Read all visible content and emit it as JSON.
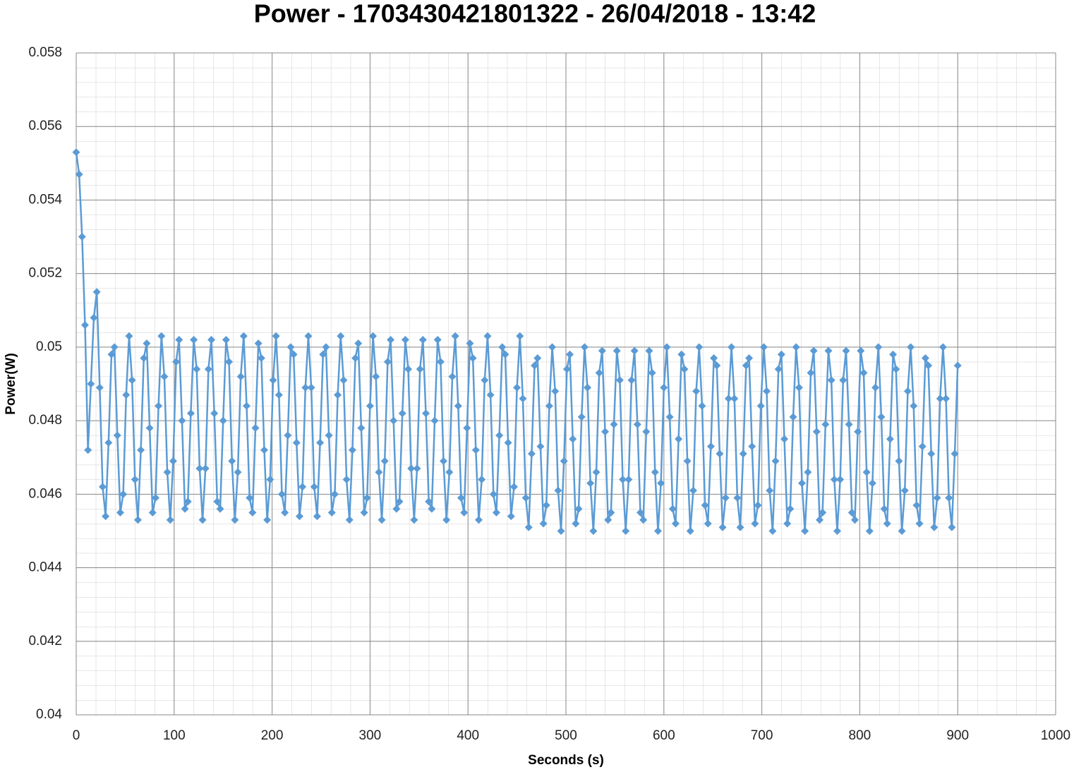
{
  "chart_data": {
    "type": "line",
    "title": "Power - 1703430421801322 - 26/04/2018 - 13:42",
    "x_label": "Seconds (s)",
    "y_label": "Power(W)",
    "color": "#5b9bd5",
    "marker": "diamond",
    "grid": true,
    "xlim": [
      0,
      1000
    ],
    "xticks": [
      0,
      100,
      200,
      300,
      400,
      500,
      600,
      700,
      800,
      900,
      1000
    ],
    "ylim": [
      0.04,
      0.058
    ],
    "yticks": [
      0.04,
      0.042,
      0.044,
      0.046,
      0.048,
      0.05,
      0.052,
      0.054,
      0.056,
      0.058
    ],
    "x": [
      0,
      3,
      6,
      9,
      12,
      15,
      18,
      21,
      24,
      27,
      30,
      33,
      36,
      39,
      42,
      45,
      48,
      51,
      54,
      57,
      60,
      63,
      66,
      69,
      72,
      75,
      78,
      81,
      84,
      87,
      90,
      93,
      96,
      99,
      102,
      105,
      108,
      111,
      114,
      117,
      120,
      123,
      126,
      129,
      132,
      135,
      138,
      141,
      144,
      147,
      150,
      153,
      156,
      159,
      162,
      165,
      168,
      171,
      174,
      177,
      180,
      183,
      186,
      189,
      192,
      195,
      198,
      201,
      204,
      207,
      210,
      213,
      216,
      219,
      222,
      225,
      228,
      231,
      234,
      237,
      240,
      243,
      246,
      249,
      252,
      255,
      258,
      261,
      264,
      267,
      270,
      273,
      276,
      279,
      282,
      285,
      288,
      291,
      294,
      297,
      300,
      303,
      306,
      309,
      312,
      315,
      318,
      321,
      324,
      327,
      330,
      333,
      336,
      339,
      342,
      345,
      348,
      351,
      354,
      357,
      360,
      363,
      366,
      369,
      372,
      375,
      378,
      381,
      384,
      387,
      390,
      393,
      396,
      399,
      402,
      405,
      408,
      411,
      414,
      417,
      420,
      423,
      426,
      429,
      432,
      435,
      438,
      441,
      444,
      447,
      450,
      453,
      456,
      459,
      462,
      465,
      468,
      471,
      474,
      477,
      480,
      483,
      486,
      489,
      492,
      495,
      498,
      501,
      504,
      507,
      510,
      513,
      516,
      519,
      522,
      525,
      528,
      531,
      534,
      537,
      540,
      543,
      546,
      549,
      552,
      555,
      558,
      561,
      564,
      567,
      570,
      573,
      576,
      579,
      582,
      585,
      588,
      591,
      594,
      597,
      600,
      603,
      606,
      609,
      612,
      615,
      618,
      621,
      624,
      627,
      630,
      633,
      636,
      639,
      642,
      645,
      648,
      651,
      654,
      657,
      660,
      663,
      666,
      669,
      672,
      675,
      678,
      681,
      684,
      687,
      690,
      693,
      696,
      699,
      702,
      705,
      708,
      711,
      714,
      717,
      720,
      723,
      726,
      729,
      732,
      735,
      738,
      741,
      744,
      747,
      750,
      753,
      756,
      759,
      762,
      765,
      768,
      771,
      774,
      777,
      780,
      783,
      786,
      789,
      792,
      795,
      798,
      801,
      804,
      807,
      810,
      813,
      816,
      819,
      822,
      825,
      828,
      831,
      834,
      837,
      840,
      843,
      846,
      849,
      852,
      855,
      858,
      861,
      864,
      867,
      870,
      873,
      876,
      879,
      882,
      885,
      888,
      891,
      894,
      897,
      900
    ],
    "values": [
      0.0553,
      0.0547,
      0.053,
      0.0506,
      0.0472,
      0.049,
      0.0508,
      0.0515,
      0.0489,
      0.0462,
      0.0454,
      0.0474,
      0.0498,
      0.05,
      0.0476,
      0.0455,
      0.046,
      0.0487,
      0.0503,
      0.0491,
      0.0464,
      0.0453,
      0.0472,
      0.0497,
      0.0501,
      0.0478,
      0.0455,
      0.0459,
      0.0484,
      0.0503,
      0.0492,
      0.0466,
      0.0453,
      0.0469,
      0.0496,
      0.0502,
      0.048,
      0.0456,
      0.0458,
      0.0482,
      0.0502,
      0.0494,
      0.0467,
      0.0453,
      0.0467,
      0.0494,
      0.0502,
      0.0482,
      0.0458,
      0.0456,
      0.048,
      0.0502,
      0.0496,
      0.0469,
      0.0453,
      0.0466,
      0.0492,
      0.0503,
      0.0484,
      0.0459,
      0.0455,
      0.0478,
      0.0501,
      0.0497,
      0.0472,
      0.0453,
      0.0464,
      0.0491,
      0.0503,
      0.0487,
      0.046,
      0.0455,
      0.0476,
      0.05,
      0.0498,
      0.0474,
      0.0454,
      0.0462,
      0.0489,
      0.0503,
      0.0489,
      0.0462,
      0.0454,
      0.0474,
      0.0498,
      0.05,
      0.0476,
      0.0455,
      0.046,
      0.0487,
      0.0503,
      0.0491,
      0.0464,
      0.0453,
      0.0472,
      0.0497,
      0.0501,
      0.0478,
      0.0455,
      0.0459,
      0.0484,
      0.0503,
      0.0492,
      0.0466,
      0.0453,
      0.0469,
      0.0496,
      0.0502,
      0.048,
      0.0456,
      0.0458,
      0.0482,
      0.0502,
      0.0494,
      0.0467,
      0.0453,
      0.0467,
      0.0494,
      0.0502,
      0.0482,
      0.0458,
      0.0456,
      0.048,
      0.0502,
      0.0496,
      0.0469,
      0.0453,
      0.0466,
      0.0492,
      0.0503,
      0.0484,
      0.0459,
      0.0455,
      0.0478,
      0.0501,
      0.0497,
      0.0472,
      0.0453,
      0.0464,
      0.0491,
      0.0503,
      0.0487,
      0.046,
      0.0455,
      0.0476,
      0.05,
      0.0498,
      0.0474,
      0.0454,
      0.0462,
      0.0489,
      0.0503,
      0.0486,
      0.0459,
      0.0451,
      0.0471,
      0.0495,
      0.0497,
      0.0473,
      0.0452,
      0.0457,
      0.0484,
      0.05,
      0.0488,
      0.0461,
      0.045,
      0.0469,
      0.0494,
      0.0498,
      0.0475,
      0.0452,
      0.0456,
      0.0481,
      0.05,
      0.0489,
      0.0463,
      0.045,
      0.0466,
      0.0493,
      0.0499,
      0.0477,
      0.0453,
      0.0455,
      0.0479,
      0.0499,
      0.0491,
      0.0464,
      0.045,
      0.0464,
      0.0491,
      0.0499,
      0.0479,
      0.0455,
      0.0453,
      0.0477,
      0.0499,
      0.0493,
      0.0466,
      0.045,
      0.0463,
      0.0489,
      0.05,
      0.0481,
      0.0456,
      0.0452,
      0.0475,
      0.0498,
      0.0494,
      0.0469,
      0.045,
      0.0461,
      0.0488,
      0.05,
      0.0484,
      0.0457,
      0.0452,
      0.0473,
      0.0497,
      0.0495,
      0.0471,
      0.0451,
      0.0459,
      0.0486,
      0.05,
      0.0486,
      0.0459,
      0.0451,
      0.0471,
      0.0495,
      0.0497,
      0.0473,
      0.0452,
      0.0457,
      0.0484,
      0.05,
      0.0488,
      0.0461,
      0.045,
      0.0469,
      0.0494,
      0.0498,
      0.0475,
      0.0452,
      0.0456,
      0.0481,
      0.05,
      0.0489,
      0.0463,
      0.045,
      0.0466,
      0.0493,
      0.0499,
      0.0477,
      0.0453,
      0.0455,
      0.0479,
      0.0499,
      0.0491,
      0.0464,
      0.045,
      0.0464,
      0.0491,
      0.0499,
      0.0479,
      0.0455,
      0.0453,
      0.0477,
      0.0499,
      0.0493,
      0.0466,
      0.045,
      0.0463,
      0.0489,
      0.05,
      0.0481,
      0.0456,
      0.0452,
      0.0475,
      0.0498,
      0.0494,
      0.0469,
      0.045,
      0.0461,
      0.0488,
      0.05,
      0.0484,
      0.0457,
      0.0452,
      0.0473,
      0.0497,
      0.0495,
      0.0471,
      0.0451,
      0.0459,
      0.0486,
      0.05,
      0.0486,
      0.0459,
      0.0451,
      0.0471,
      0.0495
    ]
  }
}
